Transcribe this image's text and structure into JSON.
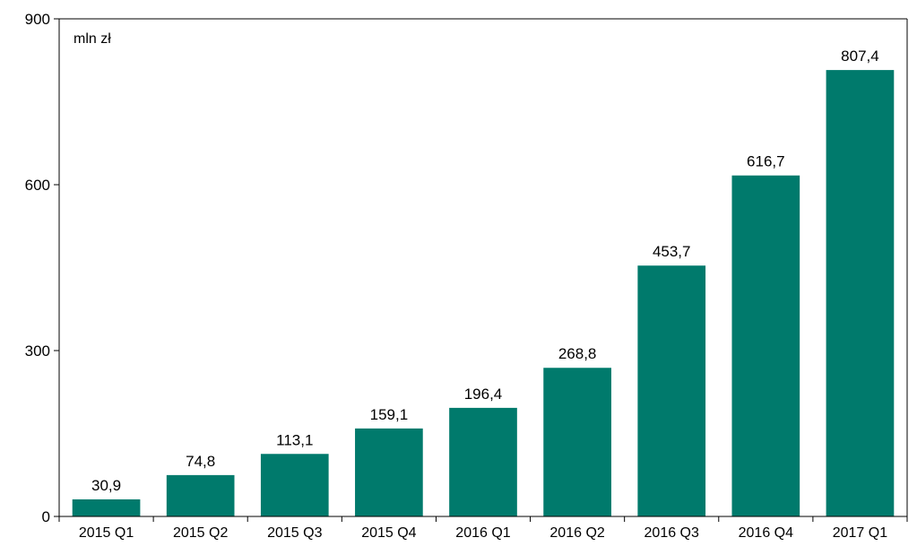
{
  "chart_data": {
    "type": "bar",
    "unit_label": "mln zł",
    "categories": [
      "2015 Q1",
      "2015 Q2",
      "2015 Q3",
      "2015 Q4",
      "2016 Q1",
      "2016 Q2",
      "2016 Q3",
      "2016 Q4",
      "2017 Q1"
    ],
    "values": [
      30.9,
      74.8,
      113.1,
      159.1,
      196.4,
      268.8,
      453.7,
      616.7,
      807.4
    ],
    "value_labels": [
      "30,9",
      "74,8",
      "113,1",
      "159,1",
      "196,4",
      "268,8",
      "453,7",
      "616,7",
      "807,4"
    ],
    "ylim": [
      0,
      900
    ],
    "yticks": [
      0,
      300,
      600,
      900
    ],
    "ytick_labels": [
      "0",
      "300",
      "600",
      "900"
    ],
    "bar_color": "#007a6c",
    "grid": false,
    "legend": false
  }
}
